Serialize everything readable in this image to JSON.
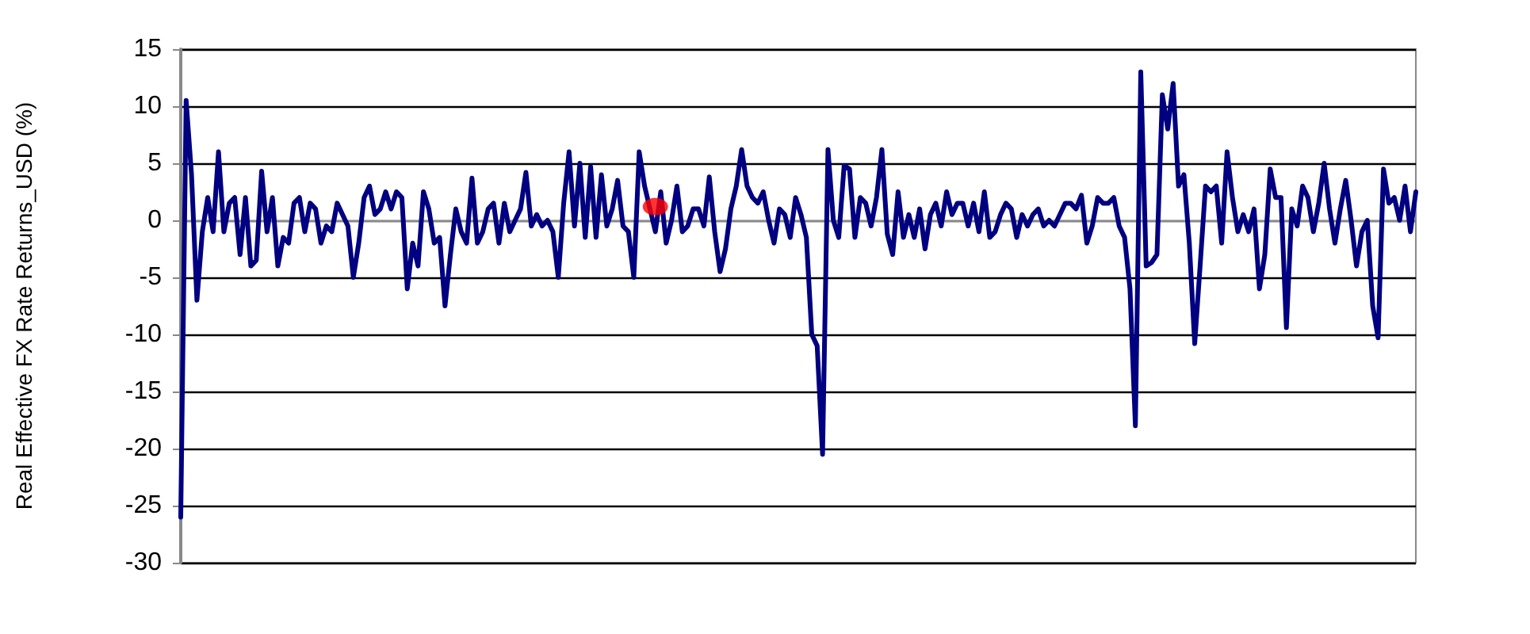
{
  "chart_data": {
    "type": "line",
    "ylabel": "Real Effective FX Rate Returns_USD (%)",
    "categories": [
      null,
      null,
      null,
      null,
      null,
      null,
      null,
      null,
      null,
      null,
      null,
      null,
      null,
      null,
      null,
      null,
      null,
      null,
      null,
      null,
      null,
      null,
      null,
      null,
      null,
      null,
      null,
      null,
      null,
      null,
      null,
      null,
      null,
      null,
      null,
      null,
      null,
      null,
      null,
      null,
      null,
      null,
      null,
      null,
      null,
      null,
      null,
      null,
      null,
      null,
      null,
      null,
      null,
      null,
      null,
      null,
      null,
      null,
      null,
      null,
      null,
      null,
      null,
      null,
      null,
      null,
      null,
      null,
      null,
      null,
      null,
      null,
      null,
      null,
      null,
      null,
      null,
      null,
      null,
      null,
      null,
      null,
      null,
      null,
      null,
      null,
      null,
      null,
      null,
      null,
      null,
      null,
      null,
      null,
      null,
      null,
      null,
      null,
      null,
      null,
      null,
      null,
      null,
      null,
      null,
      null,
      null,
      null,
      null,
      null,
      null,
      null,
      null,
      null,
      null,
      null,
      null,
      null,
      null,
      null,
      null,
      null,
      null,
      null,
      null,
      null,
      null,
      null,
      null,
      null,
      null,
      null,
      null,
      null,
      null,
      null,
      null,
      null,
      null,
      null,
      null,
      null,
      null,
      null,
      null,
      null,
      null,
      null,
      null,
      null,
      null,
      null,
      null,
      null,
      null,
      null,
      null,
      null,
      null,
      null,
      null,
      null,
      null,
      null,
      null,
      null,
      null,
      null,
      null,
      null,
      null,
      null,
      null,
      null,
      null,
      null,
      null,
      null,
      null,
      null,
      null,
      null,
      null,
      null,
      null,
      null,
      null,
      null,
      null,
      null,
      null,
      null,
      null,
      null,
      null,
      null,
      null,
      null,
      null,
      null,
      null,
      null,
      null,
      null,
      null,
      null,
      null,
      null,
      null,
      null,
      null,
      null,
      null,
      null,
      null,
      null,
      null,
      null,
      null,
      null,
      null,
      null,
      null,
      null,
      null,
      null,
      null,
      null,
      null,
      null
    ],
    "series": [
      {
        "color": "#000080",
        "marker": "none",
        "values": [
          -26,
          10.5,
          4,
          -7,
          -1,
          2,
          -1,
          6,
          -1,
          1.5,
          2,
          -3,
          2,
          -4,
          -3.5,
          4.3,
          -1,
          2,
          -4,
          -1.5,
          -2,
          1.5,
          2,
          -1,
          1.5,
          1,
          -2,
          -0.5,
          -1,
          1.5,
          0.5,
          -0.5,
          -5,
          -2,
          2,
          3,
          0.5,
          1,
          2.5,
          1,
          2.5,
          2,
          -6,
          -2,
          -4,
          2.5,
          1,
          -2,
          -1.5,
          -7.5,
          -3,
          1,
          -1,
          -2,
          3.7,
          -2,
          -1,
          1,
          1.5,
          -2,
          1.5,
          -1,
          0,
          1,
          4.2,
          -0.5,
          0.5,
          -0.5,
          0,
          -1,
          -5,
          1.5,
          6,
          -0.5,
          5,
          -1.5,
          4.7,
          -1.5,
          4,
          -0.5,
          1,
          3.5,
          -0.5,
          -1,
          -5,
          6,
          3,
          1,
          -1,
          2.5,
          -2,
          0,
          3,
          -1,
          -0.5,
          1,
          1,
          -0.5,
          3.8,
          -1,
          -4.5,
          -2.5,
          1,
          3,
          6.2,
          3,
          2,
          1.5,
          2.5,
          0,
          -2,
          1,
          0.5,
          -1.5,
          2,
          0.5,
          -1.5,
          -10,
          -11,
          -20.5,
          6.2,
          0,
          -1.5,
          4.8,
          4.5,
          -1.5,
          2,
          1.5,
          -0.5,
          2,
          6.2,
          -1.2,
          -3,
          2.5,
          -1.5,
          0.5,
          -1.5,
          1,
          -2.5,
          0.5,
          1.5,
          -0.5,
          2.5,
          0.5,
          1.5,
          1.5,
          -0.5,
          1.5,
          -1,
          2.5,
          -1.5,
          -1,
          0.5,
          1.5,
          1,
          -1.5,
          0.5,
          -0.5,
          0.5,
          1,
          -0.5,
          0,
          -0.5,
          0.5,
          1.5,
          1.5,
          1,
          2.2,
          -2,
          -0.5,
          2,
          1.5,
          1.5,
          2,
          -0.5,
          -1.5,
          -6,
          -18,
          13,
          -4,
          -3.7,
          -3,
          11,
          8,
          12,
          3,
          4,
          -2,
          -10.8,
          -4,
          3,
          2.5,
          3,
          -2,
          6,
          2,
          -1,
          0.5,
          -1,
          1,
          -6,
          -3,
          4.5,
          2,
          2,
          -9.4,
          1,
          -0.5,
          3,
          2,
          -1,
          1.5,
          5,
          1,
          -2,
          1,
          3.5,
          0,
          -4,
          -1,
          0,
          -7.5,
          -10.3,
          4.5,
          1.5,
          2,
          0,
          3,
          -1,
          2.5
        ]
      },
      {
        "type": "scatter",
        "color": "#ff0000",
        "marker": "circle",
        "values": [
          null,
          null,
          null,
          null,
          null,
          null,
          null,
          null,
          null,
          null,
          null,
          null,
          null,
          null,
          null,
          null,
          null,
          null,
          null,
          null,
          null,
          null,
          null,
          null,
          null,
          null,
          null,
          null,
          null,
          null,
          null,
          null,
          null,
          null,
          null,
          null,
          null,
          null,
          null,
          null,
          null,
          null,
          null,
          null,
          null,
          null,
          null,
          null,
          null,
          null,
          null,
          null,
          null,
          null,
          null,
          null,
          null,
          null,
          null,
          null,
          null,
          null,
          null,
          null,
          null,
          null,
          null,
          null,
          null,
          null,
          null,
          null,
          null,
          null,
          null,
          null,
          null,
          null,
          null,
          null,
          null,
          null,
          null,
          null,
          null,
          null,
          null,
          null,
          1.2,
          null,
          null,
          null,
          null,
          null,
          null,
          null,
          null,
          null,
          null,
          null,
          null,
          null,
          null,
          null,
          null,
          null,
          null,
          null,
          null,
          null,
          null,
          null,
          null,
          null,
          null,
          null,
          null,
          null,
          null,
          null,
          null,
          null,
          null,
          null,
          null,
          null,
          null,
          null,
          null,
          null,
          null,
          null,
          null,
          null,
          null,
          null,
          null,
          null,
          null,
          null,
          null,
          null,
          null,
          null,
          null,
          null,
          null,
          null,
          null,
          null,
          null,
          null,
          null,
          null,
          null,
          null,
          null,
          null,
          null,
          null,
          null,
          null,
          null,
          null,
          null,
          null,
          null,
          null,
          null,
          null,
          null,
          null,
          null,
          null,
          null,
          null,
          null,
          null,
          null,
          null,
          null,
          null,
          null,
          null,
          null,
          null,
          null,
          null,
          null,
          null,
          null,
          null,
          null,
          null,
          null,
          null,
          null,
          null,
          null,
          null,
          null,
          null,
          null,
          null,
          null,
          null,
          null,
          null,
          null,
          null,
          null,
          null,
          null,
          null,
          null,
          null,
          null,
          null,
          null,
          null,
          null,
          null,
          null,
          null,
          null,
          null,
          null,
          null,
          null,
          null
        ]
      }
    ],
    "ylim": [
      -30,
      15
    ],
    "yticks": [
      -30,
      -25,
      -20,
      -15,
      -10,
      -5,
      0,
      5,
      10,
      15
    ],
    "grid": "y",
    "line_style": "solid"
  }
}
